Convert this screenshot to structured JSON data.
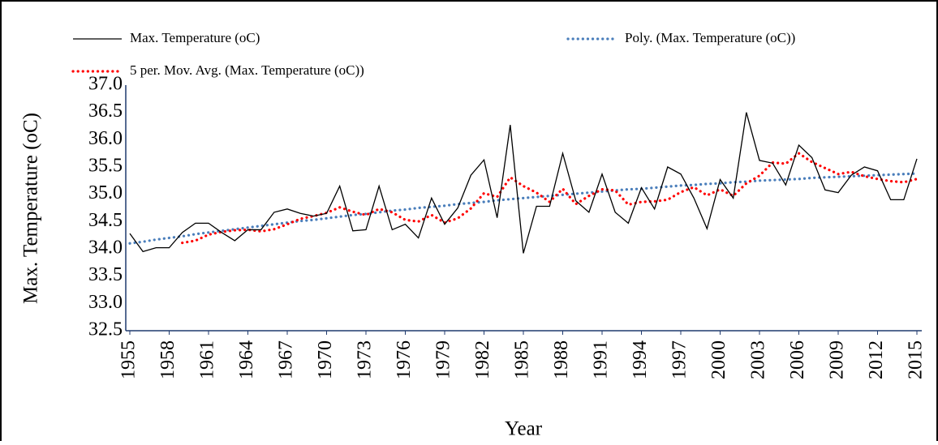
{
  "chart_data": {
    "type": "line",
    "y_label": "Max. Temperature (oC)",
    "x_label": "Year",
    "categories": [
      "1955",
      null,
      null,
      "1958",
      null,
      null,
      "1961",
      null,
      null,
      "1964",
      null,
      null,
      "1967",
      null,
      null,
      "1970",
      null,
      null,
      "1973",
      null,
      null,
      "1976",
      null,
      null,
      "1979",
      null,
      null,
      "1982",
      null,
      null,
      "1985",
      null,
      null,
      "1988",
      null,
      null,
      "1991",
      null,
      null,
      "1994",
      null,
      null,
      "1997",
      null,
      null,
      "2000",
      null,
      null,
      "2003",
      null,
      null,
      "2006",
      null,
      null,
      "2009",
      null,
      null,
      "2012",
      null,
      null,
      "2015"
    ],
    "series": [
      {
        "name": "Max. Temperature (oC)",
        "color": "#000000",
        "style": "solid",
        "values": [
          34.28,
          33.95,
          34.02,
          34.02,
          34.3,
          34.47,
          34.47,
          34.3,
          34.15,
          34.35,
          34.35,
          34.67,
          34.73,
          34.65,
          34.6,
          34.65,
          35.15,
          34.33,
          34.35,
          35.15,
          34.35,
          34.45,
          34.2,
          34.93,
          34.45,
          34.75,
          35.35,
          35.63,
          34.57,
          36.27,
          33.92,
          34.78,
          34.78,
          35.75,
          34.88,
          34.67,
          35.37,
          34.67,
          34.47,
          35.12,
          34.73,
          35.5,
          35.37,
          34.93,
          34.37,
          35.27,
          34.93,
          36.5,
          35.62,
          35.57,
          35.17,
          35.9,
          35.67,
          35.08,
          35.03,
          35.35,
          35.5,
          35.43,
          34.9,
          34.9,
          35.65
        ]
      },
      {
        "name": "Poly. (Max. Temperature (oC))",
        "color": "#4a7ebb",
        "style": "dotted",
        "values": [
          34.1,
          34.13,
          34.17,
          34.2,
          34.23,
          34.27,
          34.3,
          34.33,
          34.36,
          34.39,
          34.42,
          34.45,
          34.48,
          34.51,
          34.53,
          34.56,
          34.59,
          34.62,
          34.64,
          34.67,
          34.7,
          34.72,
          34.75,
          34.77,
          34.79,
          34.82,
          34.84,
          34.86,
          34.89,
          34.91,
          34.93,
          34.95,
          34.97,
          34.99,
          35.01,
          35.03,
          35.05,
          35.07,
          35.09,
          35.1,
          35.12,
          35.14,
          35.16,
          35.17,
          35.19,
          35.2,
          35.22,
          35.23,
          35.25,
          35.26,
          35.27,
          35.28,
          35.3,
          35.31,
          35.32,
          35.33,
          35.34,
          35.35,
          35.36,
          35.37,
          35.38
        ]
      },
      {
        "name": "5 per. Mov. Avg. (Max. Temperature (oC))",
        "color": "#ff0000",
        "style": "dotted",
        "values": [
          null,
          null,
          null,
          null,
          34.11,
          34.15,
          34.26,
          34.31,
          34.34,
          34.35,
          34.32,
          34.36,
          34.45,
          34.55,
          34.6,
          34.66,
          34.76,
          34.68,
          34.62,
          34.73,
          34.67,
          34.53,
          34.5,
          34.62,
          34.48,
          34.56,
          34.74,
          35.02,
          34.95,
          35.31,
          35.15,
          35.03,
          34.86,
          35.1,
          34.82,
          34.97,
          35.09,
          35.07,
          34.81,
          34.86,
          34.87,
          34.9,
          35.04,
          35.13,
          34.98,
          35.09,
          34.97,
          35.2,
          35.34,
          35.58,
          35.56,
          35.75,
          35.59,
          35.48,
          35.37,
          35.41,
          35.33,
          35.28,
          35.24,
          35.22,
          35.28
        ]
      }
    ],
    "ylim": [
      32.5,
      37
    ],
    "yticks": [
      {
        "value": 32.5,
        "label": "32.5"
      },
      {
        "value": 33,
        "label": "33.0"
      },
      {
        "value": 33.5,
        "label": "33.5"
      },
      {
        "value": 34,
        "label": "34.0"
      },
      {
        "value": 34.5,
        "label": "34.5"
      },
      {
        "value": 35,
        "label": "35.0"
      },
      {
        "value": 35.5,
        "label": "35.5"
      },
      {
        "value": 36,
        "label": "36.0"
      },
      {
        "value": 36.5,
        "label": "36.5"
      },
      {
        "value": 37,
        "label": "37.0"
      }
    ],
    "grid": false
  }
}
